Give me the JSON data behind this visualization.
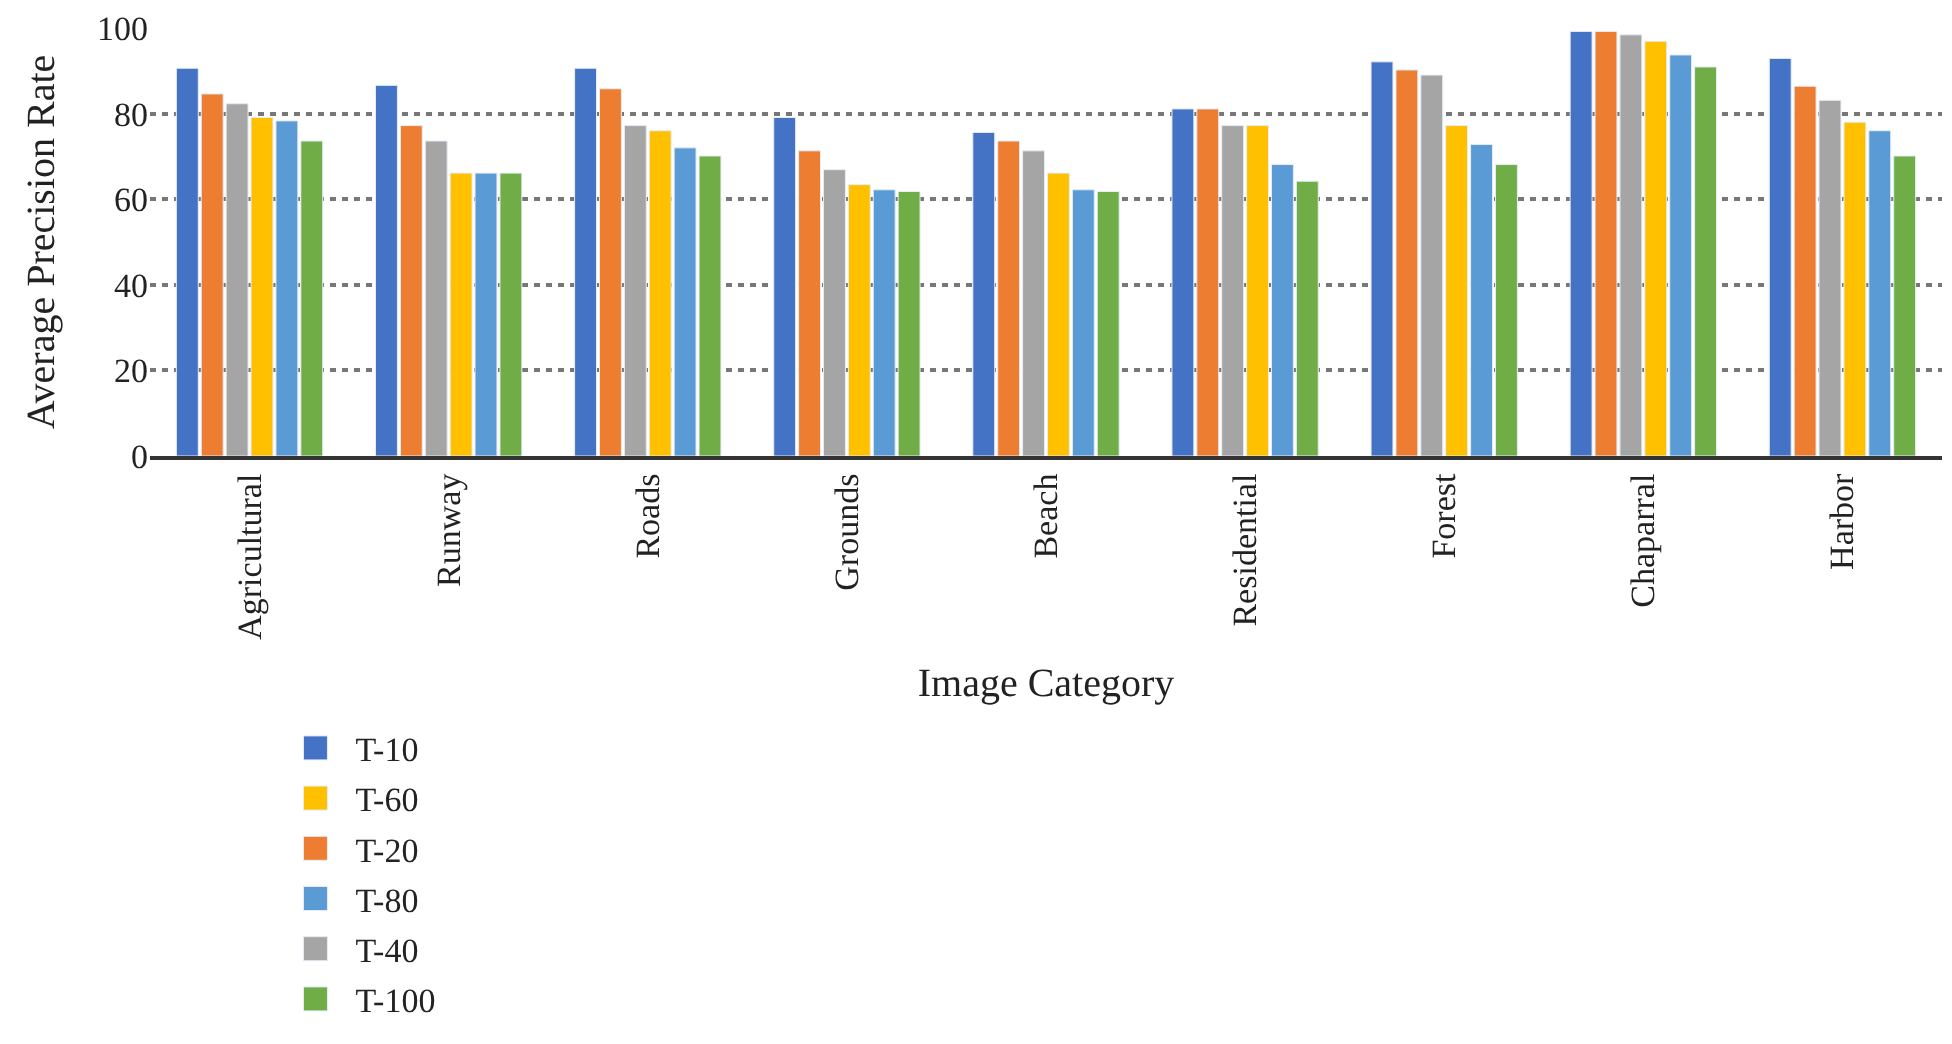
{
  "chart_data": {
    "type": "bar",
    "xlabel": "Image Category",
    "ylabel": "Average Precision Rate",
    "categories": [
      "Agricultural",
      "Runway",
      "Roads",
      "Grounds",
      "Beach",
      "Residential",
      "Forest",
      "Chaparral",
      "Harbor"
    ],
    "series": [
      {
        "name": "T-10",
        "color": "#4472c4",
        "values": [
          90.6,
          86.6,
          90.6,
          79.1,
          75.6,
          81.1,
          92.1,
          99.2,
          92.9
        ]
      },
      {
        "name": "T-20",
        "color": "#ed7d31",
        "values": [
          84.6,
          77.2,
          85.8,
          71.3,
          73.6,
          81.1,
          90.2,
          99.2,
          86.4
        ]
      },
      {
        "name": "T-40",
        "color": "#a5a5a5",
        "values": [
          82.3,
          73.6,
          77.2,
          66.9,
          71.3,
          77.2,
          89.0,
          98.4,
          83.1
        ]
      },
      {
        "name": "T-60",
        "color": "#ffc000",
        "values": [
          79.1,
          66.1,
          76.0,
          63.4,
          66.1,
          77.2,
          77.2,
          96.9,
          78.0
        ]
      },
      {
        "name": "T-80",
        "color": "#5b9bd5",
        "values": [
          78.3,
          66.1,
          72.0,
          62.2,
          62.2,
          68.1,
          72.8,
          93.7,
          76.0
        ]
      },
      {
        "name": "T-100",
        "color": "#70ad47",
        "values": [
          73.6,
          66.1,
          70.1,
          61.8,
          61.8,
          64.2,
          68.1,
          90.9,
          70.1
        ]
      }
    ],
    "ylim": [
      0,
      100
    ],
    "yticks": [
      0,
      20,
      40,
      60,
      80,
      100
    ],
    "grid": "y",
    "legend": "bottom"
  }
}
